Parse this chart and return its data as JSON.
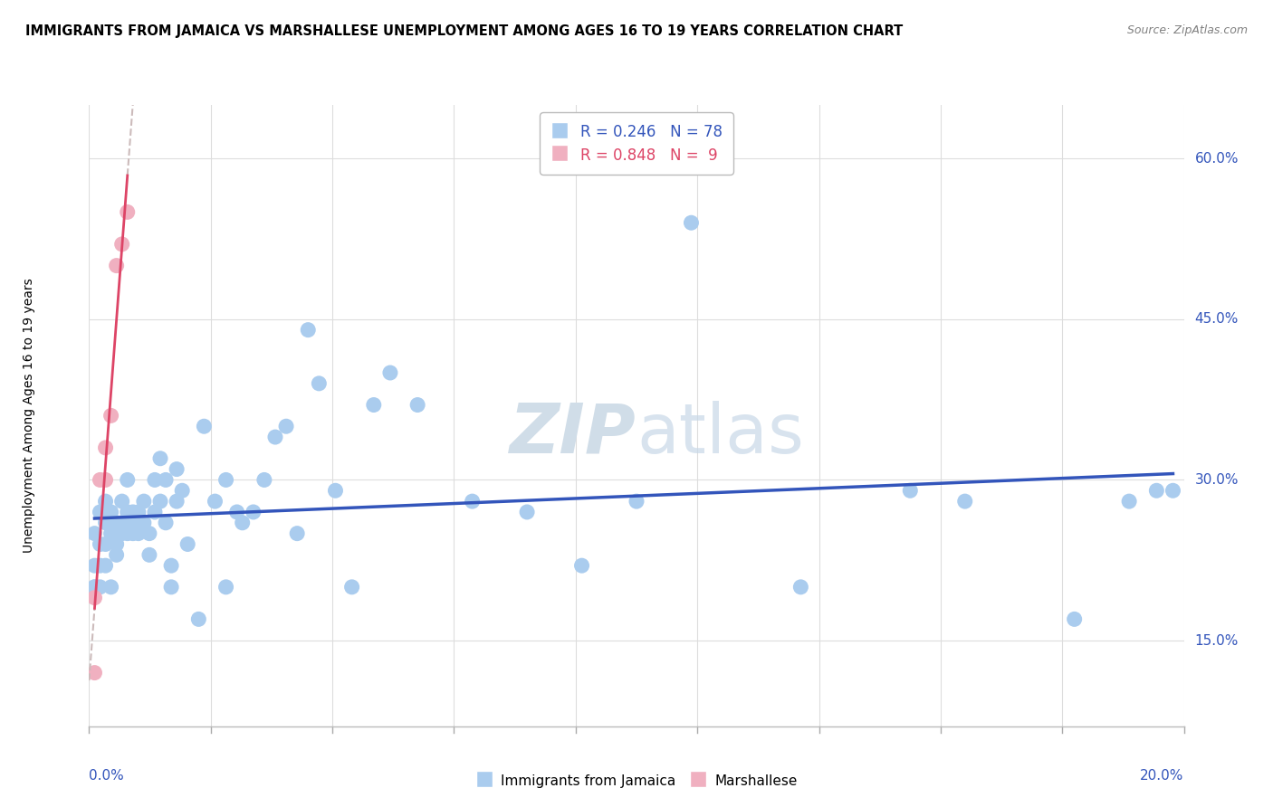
{
  "title": "IMMIGRANTS FROM JAMAICA VS MARSHALLESE UNEMPLOYMENT AMONG AGES 16 TO 19 YEARS CORRELATION CHART",
  "source": "Source: ZipAtlas.com",
  "ylabel": "Unemployment Among Ages 16 to 19 years",
  "xlim": [
    0.0,
    0.2
  ],
  "ylim": [
    0.07,
    0.65
  ],
  "yticks": [
    0.15,
    0.3,
    0.45,
    0.6
  ],
  "ytick_labels": [
    "15.0%",
    "30.0%",
    "45.0%",
    "60.0%"
  ],
  "xtick_left_label": "0.0%",
  "xtick_right_label": "20.0%",
  "legend_r1": "R = 0.246",
  "legend_n1": "N = 78",
  "legend_r2": "R = 0.848",
  "legend_n2": "N =  9",
  "blue_dot_color": "#aaccee",
  "pink_dot_color": "#f0b0c0",
  "blue_line_color": "#3355bb",
  "pink_line_color": "#dd4466",
  "dashed_line_color": "#ccbbbb",
  "watermark_color": "#d0dde8",
  "jamaica_x": [
    0.001,
    0.001,
    0.001,
    0.001,
    0.002,
    0.002,
    0.002,
    0.002,
    0.003,
    0.003,
    0.003,
    0.003,
    0.004,
    0.004,
    0.004,
    0.005,
    0.005,
    0.005,
    0.005,
    0.006,
    0.006,
    0.006,
    0.007,
    0.007,
    0.007,
    0.007,
    0.008,
    0.008,
    0.008,
    0.009,
    0.009,
    0.01,
    0.01,
    0.011,
    0.011,
    0.012,
    0.012,
    0.013,
    0.013,
    0.014,
    0.014,
    0.015,
    0.015,
    0.016,
    0.016,
    0.017,
    0.018,
    0.02,
    0.021,
    0.023,
    0.025,
    0.025,
    0.027,
    0.028,
    0.03,
    0.032,
    0.034,
    0.036,
    0.038,
    0.04,
    0.042,
    0.045,
    0.048,
    0.052,
    0.055,
    0.06,
    0.07,
    0.08,
    0.09,
    0.1,
    0.11,
    0.13,
    0.15,
    0.16,
    0.18,
    0.19,
    0.195,
    0.198
  ],
  "jamaica_y": [
    0.22,
    0.2,
    0.25,
    0.2,
    0.27,
    0.24,
    0.2,
    0.22,
    0.28,
    0.26,
    0.24,
    0.22,
    0.27,
    0.25,
    0.2,
    0.26,
    0.25,
    0.24,
    0.23,
    0.28,
    0.26,
    0.25,
    0.3,
    0.27,
    0.26,
    0.25,
    0.27,
    0.26,
    0.25,
    0.27,
    0.25,
    0.28,
    0.26,
    0.25,
    0.23,
    0.27,
    0.3,
    0.32,
    0.28,
    0.26,
    0.3,
    0.22,
    0.2,
    0.31,
    0.28,
    0.29,
    0.24,
    0.17,
    0.35,
    0.28,
    0.3,
    0.2,
    0.27,
    0.26,
    0.27,
    0.3,
    0.34,
    0.35,
    0.25,
    0.44,
    0.39,
    0.29,
    0.2,
    0.37,
    0.4,
    0.37,
    0.28,
    0.27,
    0.22,
    0.28,
    0.54,
    0.2,
    0.29,
    0.28,
    0.17,
    0.28,
    0.29,
    0.29
  ],
  "marshallese_x": [
    0.001,
    0.001,
    0.002,
    0.003,
    0.003,
    0.004,
    0.005,
    0.006,
    0.007
  ],
  "marshallese_y": [
    0.12,
    0.19,
    0.3,
    0.3,
    0.33,
    0.36,
    0.5,
    0.52,
    0.55
  ]
}
